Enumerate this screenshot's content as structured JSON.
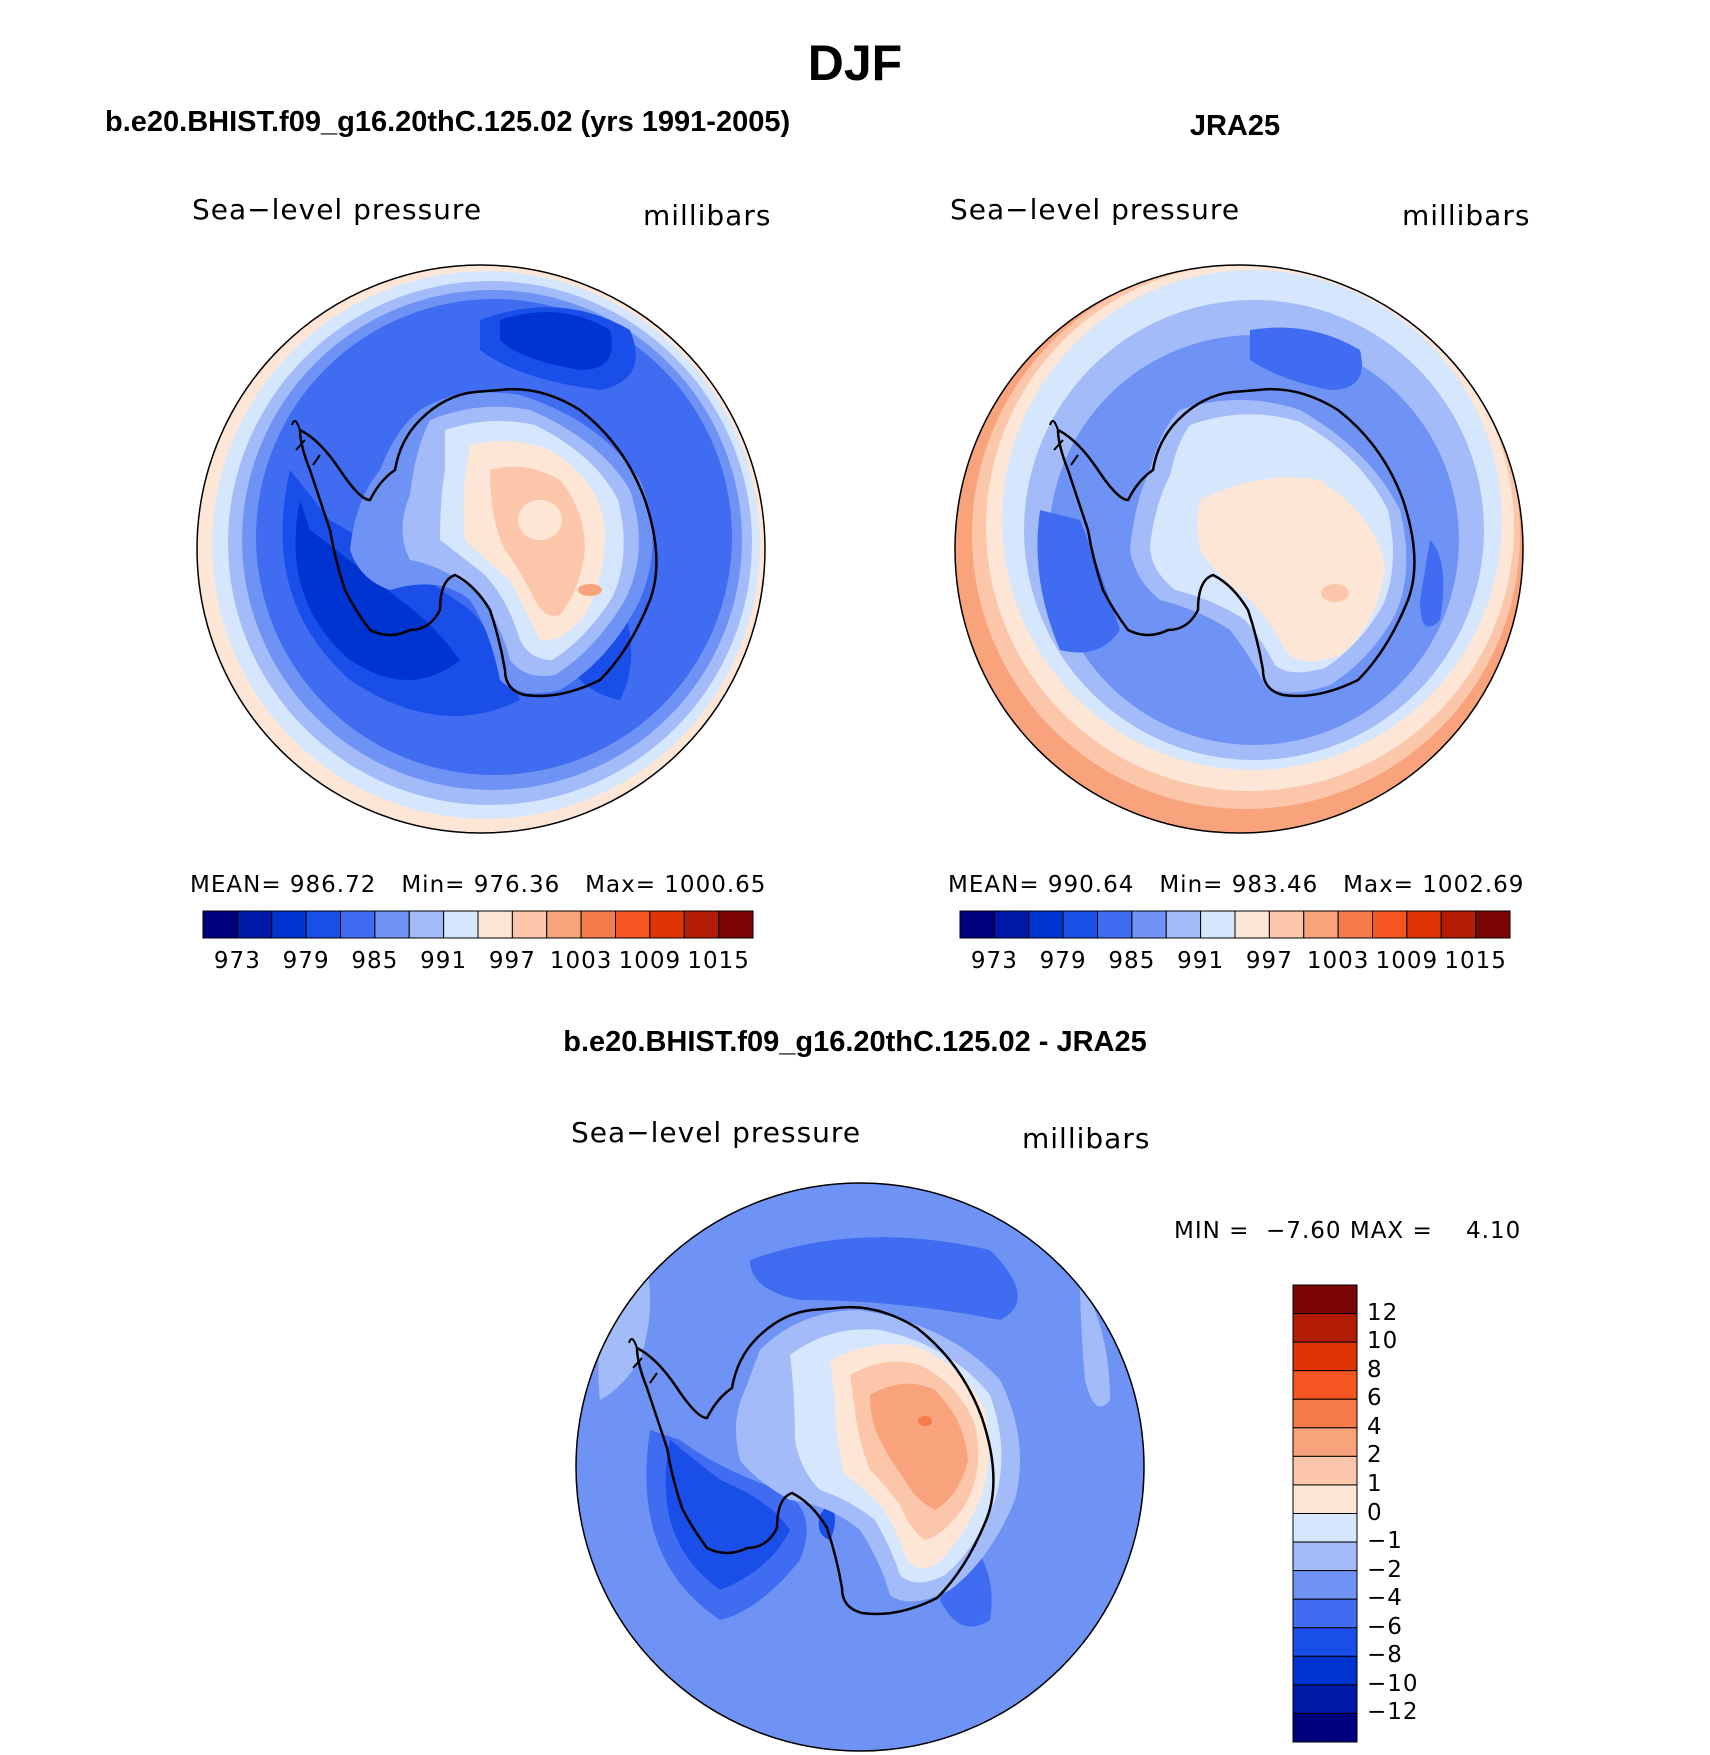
{
  "main_title": "DJF",
  "colors": {
    "levels": [
      "#00007f",
      "#0019a8",
      "#0034d0",
      "#1a4ee8",
      "#3f6cf0",
      "#6f93f5",
      "#a3bcf9",
      "#d6e6fc",
      "#fde6d6",
      "#fcc6aa",
      "#f8a37b",
      "#f67a4a",
      "#f55520",
      "#e03404",
      "#b31c04",
      "#7c0606"
    ]
  },
  "panel_a": {
    "title": "b.e20.BHIST.f09_g16.20thC.125.02 (yrs 1991-2005)",
    "variable": "Sea−level pressure",
    "units": "millibars",
    "mean_label": "MEAN=",
    "mean": "986.72",
    "min_label": "Min=",
    "min": "976.36",
    "max_label": "Max=",
    "max": "1000.65",
    "colorbar_ticks": [
      "973",
      "979",
      "985",
      "991",
      "997",
      "1003",
      "1009",
      "1015"
    ]
  },
  "panel_b": {
    "title": "JRA25",
    "variable": "Sea−level pressure",
    "units": "millibars",
    "mean_label": "MEAN=",
    "mean": "990.64",
    "min_label": "Min=",
    "min": "983.46",
    "max_label": "Max=",
    "max": "1002.69",
    "colorbar_ticks": [
      "973",
      "979",
      "985",
      "991",
      "997",
      "1003",
      "1009",
      "1015"
    ]
  },
  "panel_c": {
    "title": "b.e20.BHIST.f09_g16.20thC.125.02 - JRA25",
    "variable": "Sea−level pressure",
    "units": "millibars",
    "min_label": "MIN =",
    "min": "−7.60",
    "max_label": "MAX =",
    "max": "4.10",
    "colorbar_ticks": [
      "12",
      "10",
      "8",
      "6",
      "4",
      "2",
      "1",
      "0",
      "−1",
      "−2",
      "−4",
      "−6",
      "−8",
      "−10",
      "−12"
    ]
  }
}
